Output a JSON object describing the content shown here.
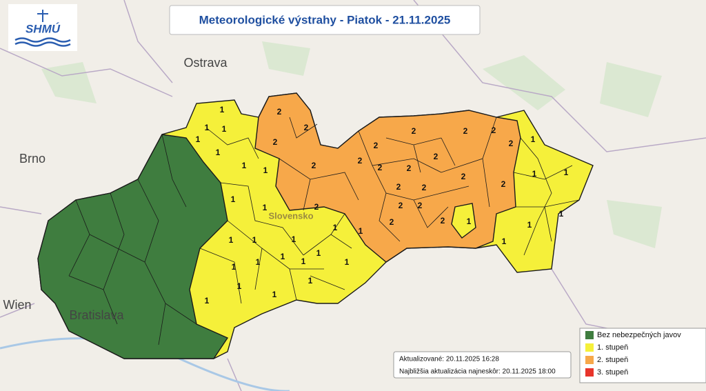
{
  "header": {
    "title": "Meteorologické výstrahy - Piatok - 21.11.2025",
    "logo": "SHMÚ"
  },
  "map": {
    "places": [
      "Ostrava",
      "Brno",
      "Wien",
      "Bratislava",
      "Slovensko"
    ],
    "district_levels": [
      1,
      1,
      1,
      1,
      1,
      1,
      1,
      1,
      1,
      1,
      1,
      1,
      1,
      1,
      1,
      1,
      1,
      1,
      1,
      1,
      1,
      1,
      1,
      1,
      2,
      2,
      2,
      2,
      2,
      2,
      2,
      2,
      2,
      2,
      2,
      2,
      2,
      2,
      2,
      2,
      2,
      2,
      2,
      2,
      2,
      2,
      1,
      1,
      1,
      1,
      1,
      1,
      1
    ]
  },
  "legend": {
    "items": [
      {
        "label": "Bez nebezpečných javov",
        "color": "#3f7d3f"
      },
      {
        "label": "1. stupeň",
        "color": "#f5f03a"
      },
      {
        "label": "2. stupeň",
        "color": "#f7a84a"
      },
      {
        "label": "3. stupeň",
        "color": "#e8352b"
      }
    ]
  },
  "footer": {
    "updated": "Aktualizované: 20.11.2025 16:28",
    "next": "Najbližšia aktualizácia najneskôr: 20.11.2025 18:00"
  }
}
